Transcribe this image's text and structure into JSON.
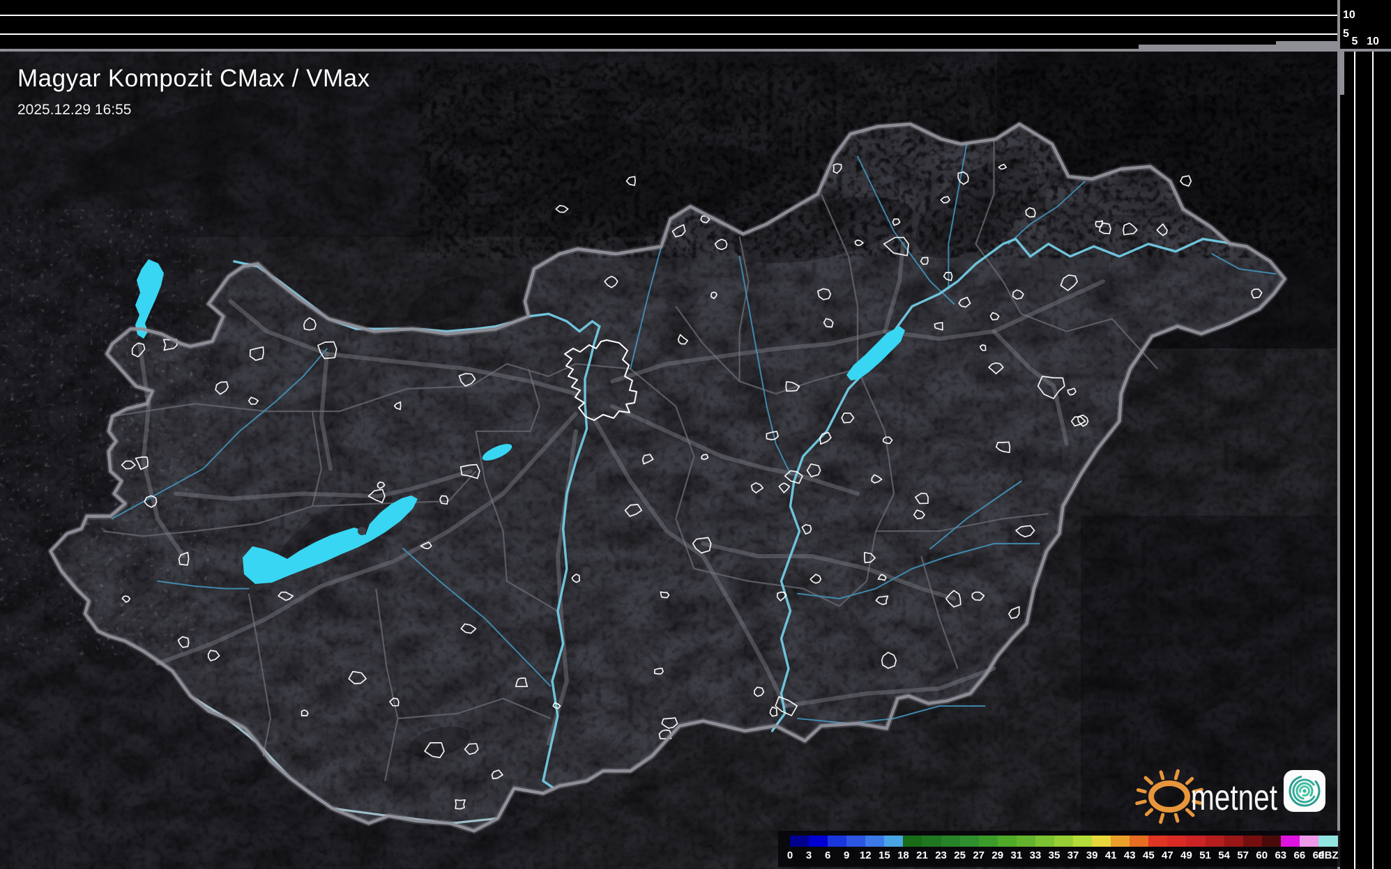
{
  "header": {
    "title": "Magyar Kompozit CMax / VMax",
    "timestamp": "2025.12.29 16:55"
  },
  "top_axis": {
    "ticks": [
      "10",
      "5"
    ]
  },
  "right_axis": {
    "ticks": [
      "5",
      "10"
    ]
  },
  "colorbar": {
    "unit": "dBZ",
    "ticks": [
      "0",
      "3",
      "6",
      "9",
      "12",
      "15",
      "18",
      "21",
      "23",
      "25",
      "27",
      "29",
      "31",
      "33",
      "35",
      "37",
      "39",
      "41",
      "43",
      "45",
      "47",
      "49",
      "51",
      "54",
      "57",
      "60",
      "63",
      "66",
      "69"
    ],
    "segment_colors": [
      "#00008e",
      "#0000d2",
      "#1a36dd",
      "#2c55e2",
      "#3c7ae8",
      "#49a5e4",
      "#186c18",
      "#1f7720",
      "#278327",
      "#2f8f2e",
      "#3c9c2a",
      "#4faa28",
      "#63b42c",
      "#7cc232",
      "#97cf35",
      "#b5dd3a",
      "#e8d83c",
      "#eba02c",
      "#e76d22",
      "#e03522",
      "#d92b24",
      "#cc2424",
      "#b51d1d",
      "#981616",
      "#750f0f",
      "#4a0a0a",
      "#df13df",
      "#ef9ae9"
    ],
    "overflow_color": "#92e4e0"
  },
  "logo": {
    "brand": "metnet"
  },
  "map": {
    "land_color": "#3d3d45",
    "outside_color": "#26262b",
    "border_color": "#90909a",
    "county_color": "#64646c",
    "road_color": "#82828c",
    "river_color": "#4392ba",
    "major_river_color": "#72cbe4",
    "lake_color": "#38d6f2",
    "settlement_outline_color": "#ffffff",
    "panel_background": "#000000",
    "panel_grid_color": "#ffffff"
  }
}
